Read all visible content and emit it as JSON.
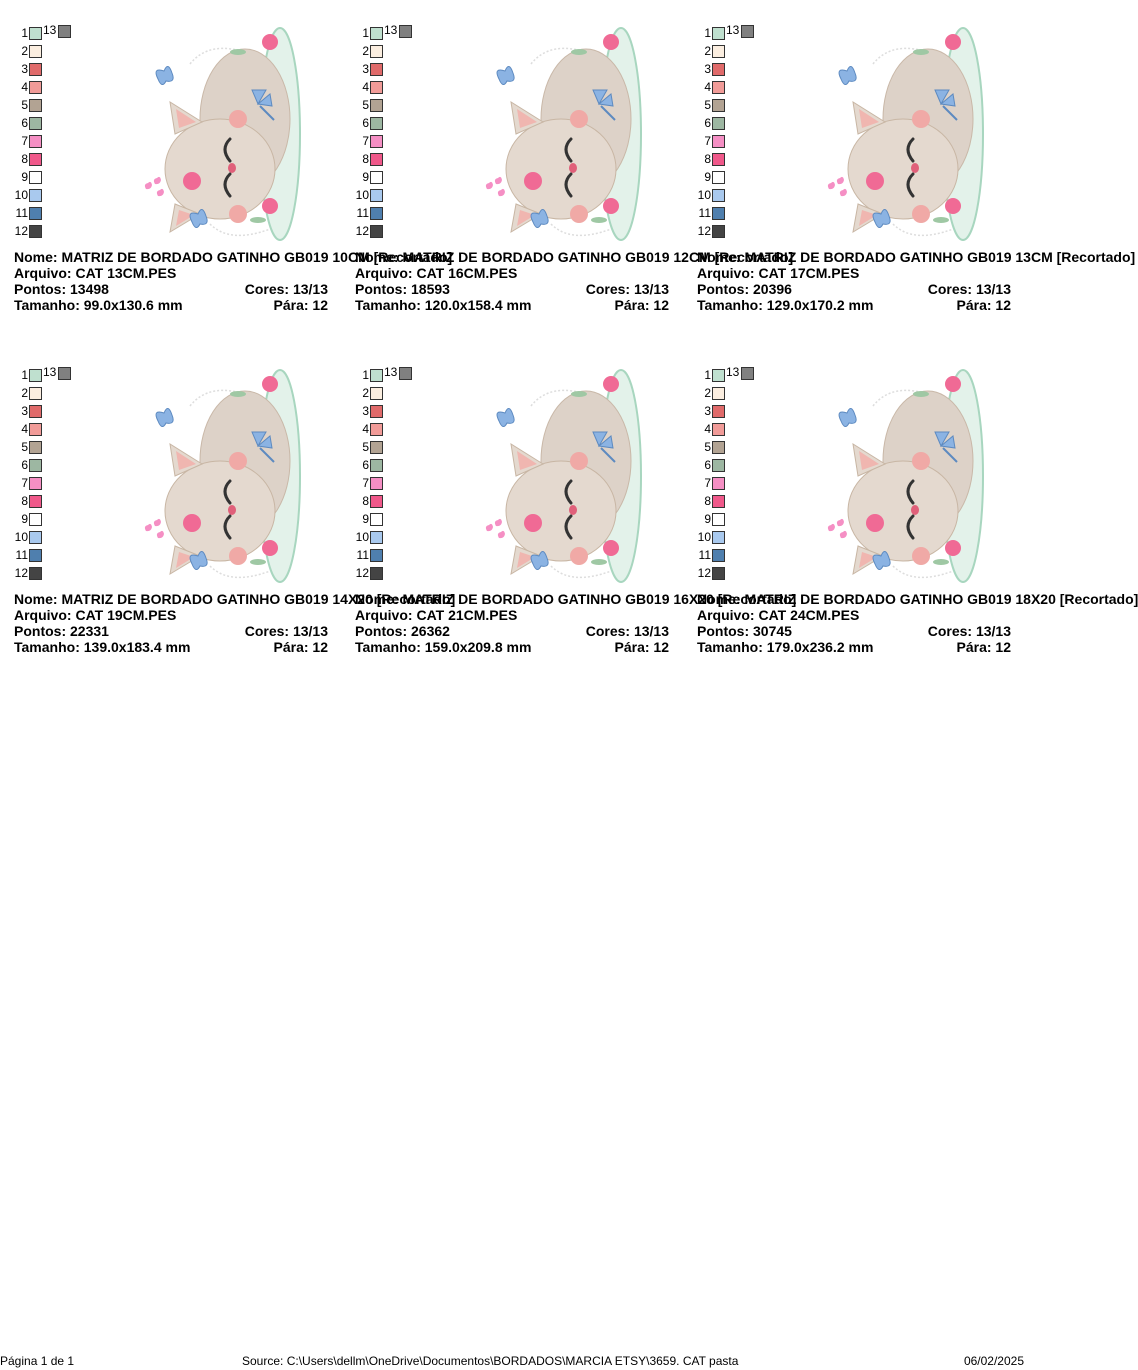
{
  "designs": [
    {
      "nome": "MATRIZ DE BORDADO GATINHO GB019 10CM [Recortado]",
      "arquivo": "CAT 13CM.PES",
      "pontos": "13498",
      "cores": "13/13",
      "tamanho": "99.0x130.6 mm",
      "para": "12"
    },
    {
      "nome": "MATRIZ DE BORDADO GATINHO GB019 12CM [Recortado]",
      "arquivo": "CAT 16CM.PES",
      "pontos": "18593",
      "cores": "13/13",
      "tamanho": "120.0x158.4 mm",
      "para": "12"
    },
    {
      "nome": "MATRIZ DE BORDADO GATINHO GB019 13CM [Recortado]",
      "arquivo": "CAT 17CM.PES",
      "pontos": "20396",
      "cores": "13/13",
      "tamanho": "129.0x170.2 mm",
      "para": "12"
    },
    {
      "nome": "MATRIZ DE BORDADO GATINHO GB019 14X20 [Recortado]",
      "arquivo": "CAT 19CM.PES",
      "pontos": "22331",
      "cores": "13/13",
      "tamanho": "139.0x183.4 mm",
      "para": "12"
    },
    {
      "nome": "MATRIZ DE BORDADO GATINHO GB019 16X20 [Recortado]",
      "arquivo": "CAT 21CM.PES",
      "pontos": "26362",
      "cores": "13/13",
      "tamanho": "159.0x209.8 mm",
      "para": "12"
    },
    {
      "nome": "MATRIZ DE BORDADO GATINHO GB019 18X20 [Recortado]",
      "arquivo": "CAT 24CM.PES",
      "pontos": "30745",
      "cores": "13/13",
      "tamanho": "179.0x236.2 mm",
      "para": "12"
    }
  ],
  "labels": {
    "nome": "Nome:",
    "arquivo": "Arquivo:",
    "pontos": "Pontos:",
    "cores": "Cores:",
    "tamanho": "Tamanho:",
    "para": "Pára:"
  },
  "palette": [
    {
      "num": "1",
      "color": "#bfe0cf"
    },
    {
      "num": "2",
      "color": "#fbeee0"
    },
    {
      "num": "3",
      "color": "#e06a6a"
    },
    {
      "num": "4",
      "color": "#f19b98"
    },
    {
      "num": "5",
      "color": "#b2a393"
    },
    {
      "num": "6",
      "color": "#9db7a2"
    },
    {
      "num": "7",
      "color": "#f58fc4"
    },
    {
      "num": "8",
      "color": "#f0588a"
    },
    {
      "num": "9",
      "color": "#ffffff"
    },
    {
      "num": "10",
      "color": "#a9c9ee"
    },
    {
      "num": "11",
      "color": "#4f7fae"
    },
    {
      "num": "12",
      "color": "#444444"
    },
    {
      "num": "13",
      "color": "#808080"
    }
  ],
  "footer": {
    "page": "Página 1 de 1",
    "source": "Source: C:\\Users\\dellm\\OneDrive\\Documentos\\BORDADOS\\MARCIA ETSY\\3659. CAT pasta",
    "date": "06/02/2025"
  }
}
